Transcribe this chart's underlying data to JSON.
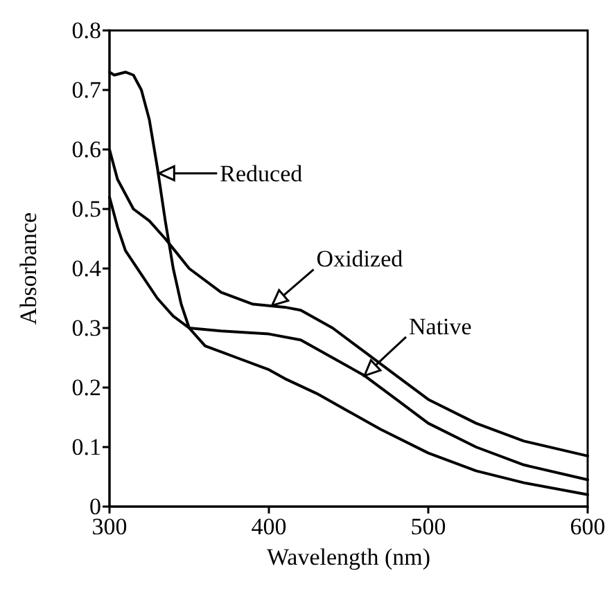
{
  "chart_data": {
    "type": "line",
    "xlabel": "Wavelength (nm)",
    "ylabel": "Absorbance",
    "xlim": [
      300,
      600
    ],
    "xticks": [
      300,
      400,
      500,
      600
    ],
    "ylim": [
      0,
      0.8
    ],
    "yticks": [
      0,
      0.1,
      0.2,
      0.3,
      0.4,
      0.5,
      0.6,
      0.7,
      0.8
    ],
    "grid": false,
    "marker": "none",
    "line_style": "solid",
    "annotations": [
      {
        "text": "Reduced",
        "x": 331,
        "y": 0.56
      },
      {
        "text": "Oxidized",
        "x": 402,
        "y": 0.338
      },
      {
        "text": "Native",
        "x": 460,
        "y": 0.22
      }
    ],
    "series": [
      {
        "color": "#000000",
        "x": [
          300,
          303,
          310,
          315,
          320,
          325,
          330,
          335,
          340,
          345,
          350,
          360,
          380,
          395,
          400,
          410,
          430,
          450,
          470,
          500,
          530,
          560,
          600
        ],
        "values": [
          0.73,
          0.725,
          0.73,
          0.725,
          0.7,
          0.65,
          0.57,
          0.48,
          0.4,
          0.34,
          0.3,
          0.27,
          0.25,
          0.235,
          0.23,
          0.215,
          0.19,
          0.16,
          0.13,
          0.09,
          0.06,
          0.04,
          0.02
        ]
      },
      {
        "color": "#000000",
        "x": [
          300,
          305,
          315,
          325,
          335,
          350,
          370,
          390,
          410,
          420,
          440,
          460,
          480,
          500,
          530,
          560,
          600
        ],
        "values": [
          0.6,
          0.55,
          0.5,
          0.48,
          0.45,
          0.4,
          0.36,
          0.34,
          0.335,
          0.33,
          0.3,
          0.26,
          0.22,
          0.18,
          0.14,
          0.11,
          0.085
        ]
      },
      {
        "color": "#000000",
        "x": [
          300,
          305,
          310,
          320,
          330,
          340,
          350,
          370,
          400,
          420,
          440,
          460,
          480,
          500,
          530,
          560,
          600
        ],
        "values": [
          0.52,
          0.47,
          0.43,
          0.39,
          0.35,
          0.32,
          0.3,
          0.295,
          0.29,
          0.28,
          0.25,
          0.22,
          0.18,
          0.14,
          0.1,
          0.07,
          0.045
        ]
      }
    ]
  }
}
